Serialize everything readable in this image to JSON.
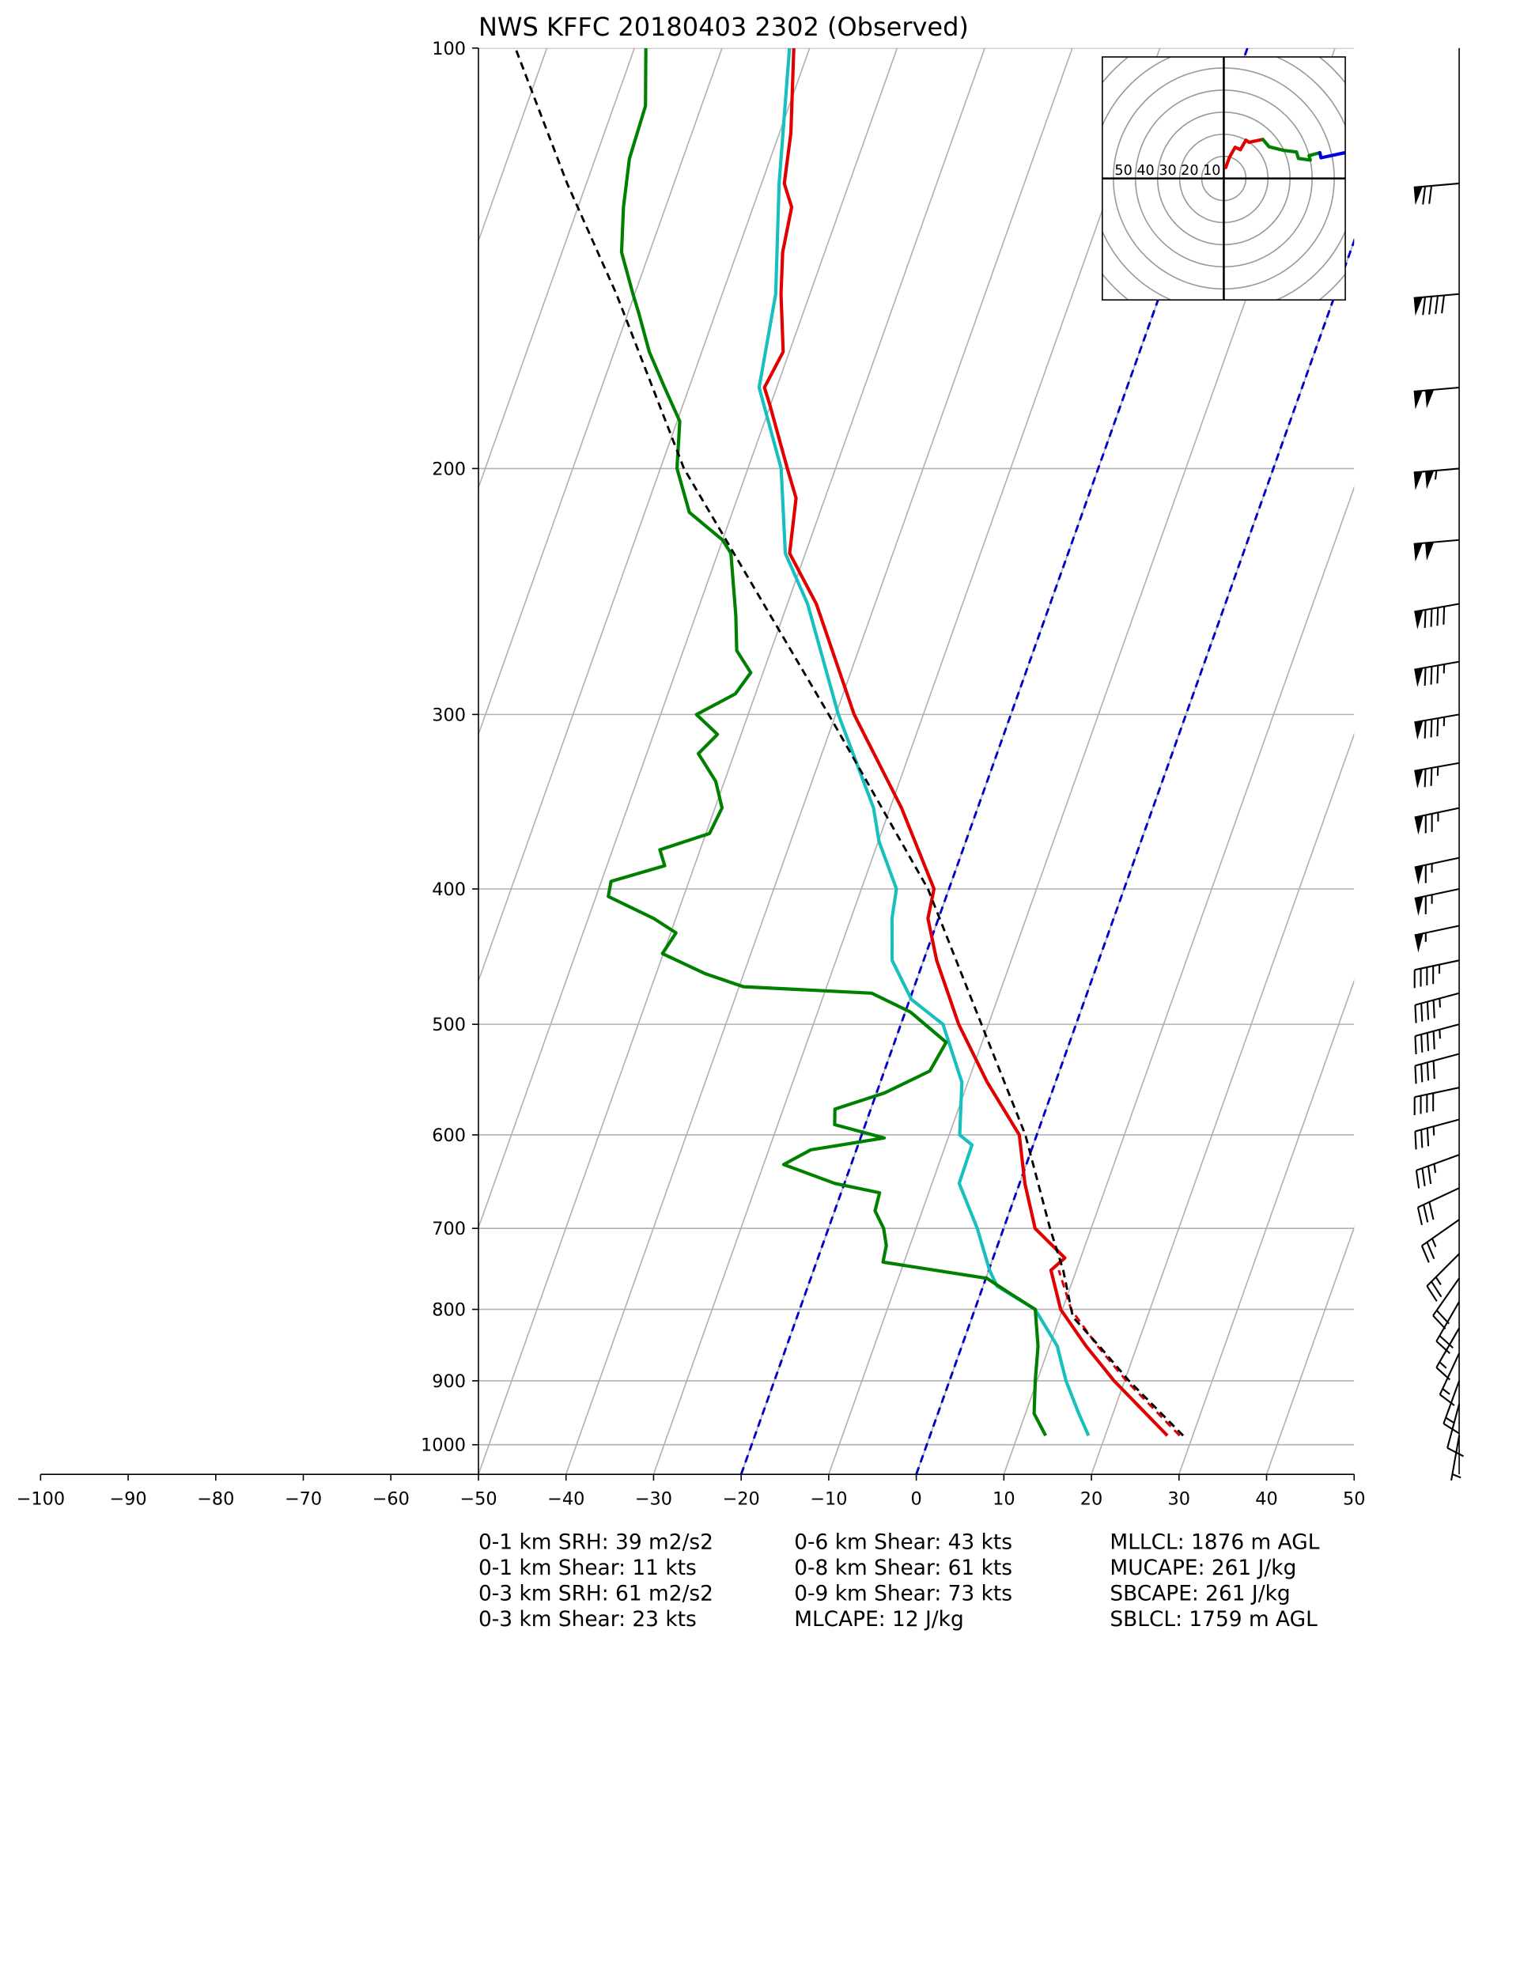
{
  "chart_data": {
    "type": "skewt",
    "title": "NWS KFFC 20180403 2302   (Observed)",
    "xlim": [
      -50,
      50
    ],
    "ylim": [
      1050,
      100
    ],
    "xticks": [
      {
        "value": -100,
        "label": "−100"
      },
      {
        "value": -90,
        "label": "−90"
      },
      {
        "value": -80,
        "label": "−80"
      },
      {
        "value": -70,
        "label": "−70"
      },
      {
        "value": -60,
        "label": "−60"
      },
      {
        "value": -50,
        "label": "−50"
      },
      {
        "value": -40,
        "label": "−40"
      },
      {
        "value": -30,
        "label": "−30"
      },
      {
        "value": -20,
        "label": "−20"
      },
      {
        "value": -10,
        "label": "−10"
      },
      0,
      10,
      20,
      30,
      40,
      50
    ],
    "yticks": [
      100,
      200,
      300,
      400,
      500,
      600,
      700,
      800,
      900,
      1000
    ],
    "grid": true,
    "grid_color": "#b0b0b0",
    "highlight_isotherms": {
      "values": [
        -20,
        0
      ],
      "color": "#0000cc"
    },
    "series": [
      {
        "color": "#17bfbf",
        "style": "solid",
        "pressure": [
          985,
          950,
          900,
          850,
          800,
          770,
          750,
          700,
          650,
          610,
          600,
          550,
          500,
          480,
          450,
          420,
          400,
          370,
          350,
          300,
          250,
          230,
          200,
          175,
          150,
          125,
          100
        ],
        "values": [
          18.1,
          16.1,
          13.3,
          10.9,
          6.9,
          1.6,
          0.1,
          -3,
          -6.9,
          -7,
          -8.8,
          -10.7,
          -15.2,
          -19.8,
          -23.6,
          -25.3,
          -26,
          -29.9,
          -31.9,
          -39.7,
          -47.7,
          -52.3,
          -56.2,
          -62,
          -63.9,
          -68,
          -72.3
        ]
      },
      {
        "color": "#e00000",
        "style": "dashed",
        "pressure": [
          985,
          900,
          850,
          800,
          750
        ],
        "values": [
          28.5,
          20.2,
          15.5,
          11,
          8
        ]
      },
      {
        "color": "#e00000",
        "style": "solid",
        "pressure": [
          985,
          900,
          850,
          800,
          750,
          735,
          700,
          650,
          600,
          550,
          500,
          450,
          420,
          400,
          350,
          300,
          250,
          230,
          210,
          200,
          180,
          175,
          165,
          150,
          140,
          130,
          125,
          115,
          100
        ],
        "values": [
          27.1,
          18.8,
          14.2,
          9.8,
          7.1,
          8.2,
          3.6,
          0.6,
          -2.0,
          -7.8,
          -13.4,
          -18.5,
          -21.2,
          -21.7,
          -28.7,
          -37.9,
          -46.7,
          -51.8,
          -53.3,
          -55.5,
          -60.1,
          -61.4,
          -60.7,
          -63.3,
          -64.8,
          -65.6,
          -67.4,
          -68.7,
          -71.8
        ]
      },
      {
        "color": "#008000",
        "style": "solid",
        "pressure": [
          985,
          950,
          900,
          850,
          800,
          780,
          760,
          740,
          720,
          700,
          680,
          660,
          650,
          630,
          615,
          603,
          590,
          575,
          560,
          540,
          515,
          490,
          475,
          470,
          460,
          445,
          430,
          420,
          405,
          395,
          385,
          375,
          365,
          350,
          335,
          320,
          310,
          300,
          290,
          280,
          270,
          255,
          230,
          225,
          215,
          200,
          185,
          175,
          165,
          155,
          150,
          140,
          130,
          120,
          110,
          100
        ],
        "values": [
          13.2,
          11,
          9.8,
          8.7,
          6.9,
          3.5,
          0.1,
          -12.4,
          -12.7,
          -13.7,
          -15.4,
          -15.6,
          -21.1,
          -27.7,
          -25.2,
          -17.3,
          -23.5,
          -24.1,
          -19.1,
          -14.8,
          -14.1,
          -19.4,
          -24.6,
          -39.5,
          -44.4,
          -50.1,
          -49.4,
          -52.5,
          -58.6,
          -58.9,
          -53.4,
          -54.6,
          -49.6,
          -49.2,
          -51,
          -54.1,
          -52.7,
          -55.9,
          -52.3,
          -51.4,
          -53.9,
          -55.4,
          -58.5,
          -60,
          -64.9,
          -68.1,
          -69.7,
          -72.8,
          -76,
          -78.7,
          -80.2,
          -83.2,
          -84.8,
          -86.1,
          -86.4,
          -88.7
        ]
      },
      {
        "color": "#000000",
        "style": "dashed",
        "pressure": [
          985,
          900,
          850,
          810,
          750,
          700,
          600,
          500,
          400,
          300,
          200,
          150,
          125,
          100
        ],
        "values": [
          28.9,
          20.5,
          15.7,
          11.5,
          8.5,
          5.3,
          -1.3,
          -10.8,
          -22.4,
          -40.8,
          -67.3,
          -82.1,
          -92.2,
          -103.6
        ]
      }
    ],
    "winds": {
      "pressure": [
        125,
        150,
        175,
        200,
        225,
        250,
        275,
        300,
        325,
        350,
        380,
        400,
        425,
        450,
        475,
        500,
        525,
        555,
        585,
        620,
        655,
        690,
        730,
        760,
        790,
        825,
        860,
        900,
        935,
        985
      ],
      "speed": [
        70,
        90,
        100,
        105,
        100,
        90,
        85,
        85,
        75,
        75,
        65,
        65,
        55,
        45,
        45,
        45,
        40,
        40,
        35,
        35,
        30,
        25,
        25,
        20,
        20,
        15,
        15,
        15,
        10,
        5
      ],
      "direction": [
        265,
        265,
        265,
        265,
        265,
        260,
        260,
        260,
        260,
        258,
        258,
        258,
        258,
        258,
        255,
        255,
        255,
        258,
        255,
        250,
        245,
        235,
        225,
        215,
        210,
        210,
        205,
        200,
        195,
        190
      ]
    },
    "hodograph": {
      "lim": [
        -55,
        55
      ],
      "rings": [
        10,
        20,
        30,
        40,
        50,
        60,
        70,
        80
      ],
      "ring_labels": [
        50,
        40,
        30,
        20,
        10
      ],
      "colors": [
        "#e00000",
        "#008000",
        "#0000e0"
      ]
    },
    "stats": [
      [
        "0-1 km SRH: 39 m2/s2",
        "0-1 km Shear: 11 kts",
        "0-3 km SRH: 61 m2/s2",
        "0-3 km Shear: 23 kts"
      ],
      [
        "0-6 km Shear: 43 kts",
        "0-8 km Shear: 61 kts",
        "0-9 km Shear: 73 kts",
        "MLCAPE: 12 J/kg"
      ],
      [
        "MLLCL: 1876 m AGL",
        "MUCAPE: 261 J/kg",
        "SBCAPE: 261 J/kg",
        "SBLCL: 1759 m AGL"
      ]
    ]
  }
}
